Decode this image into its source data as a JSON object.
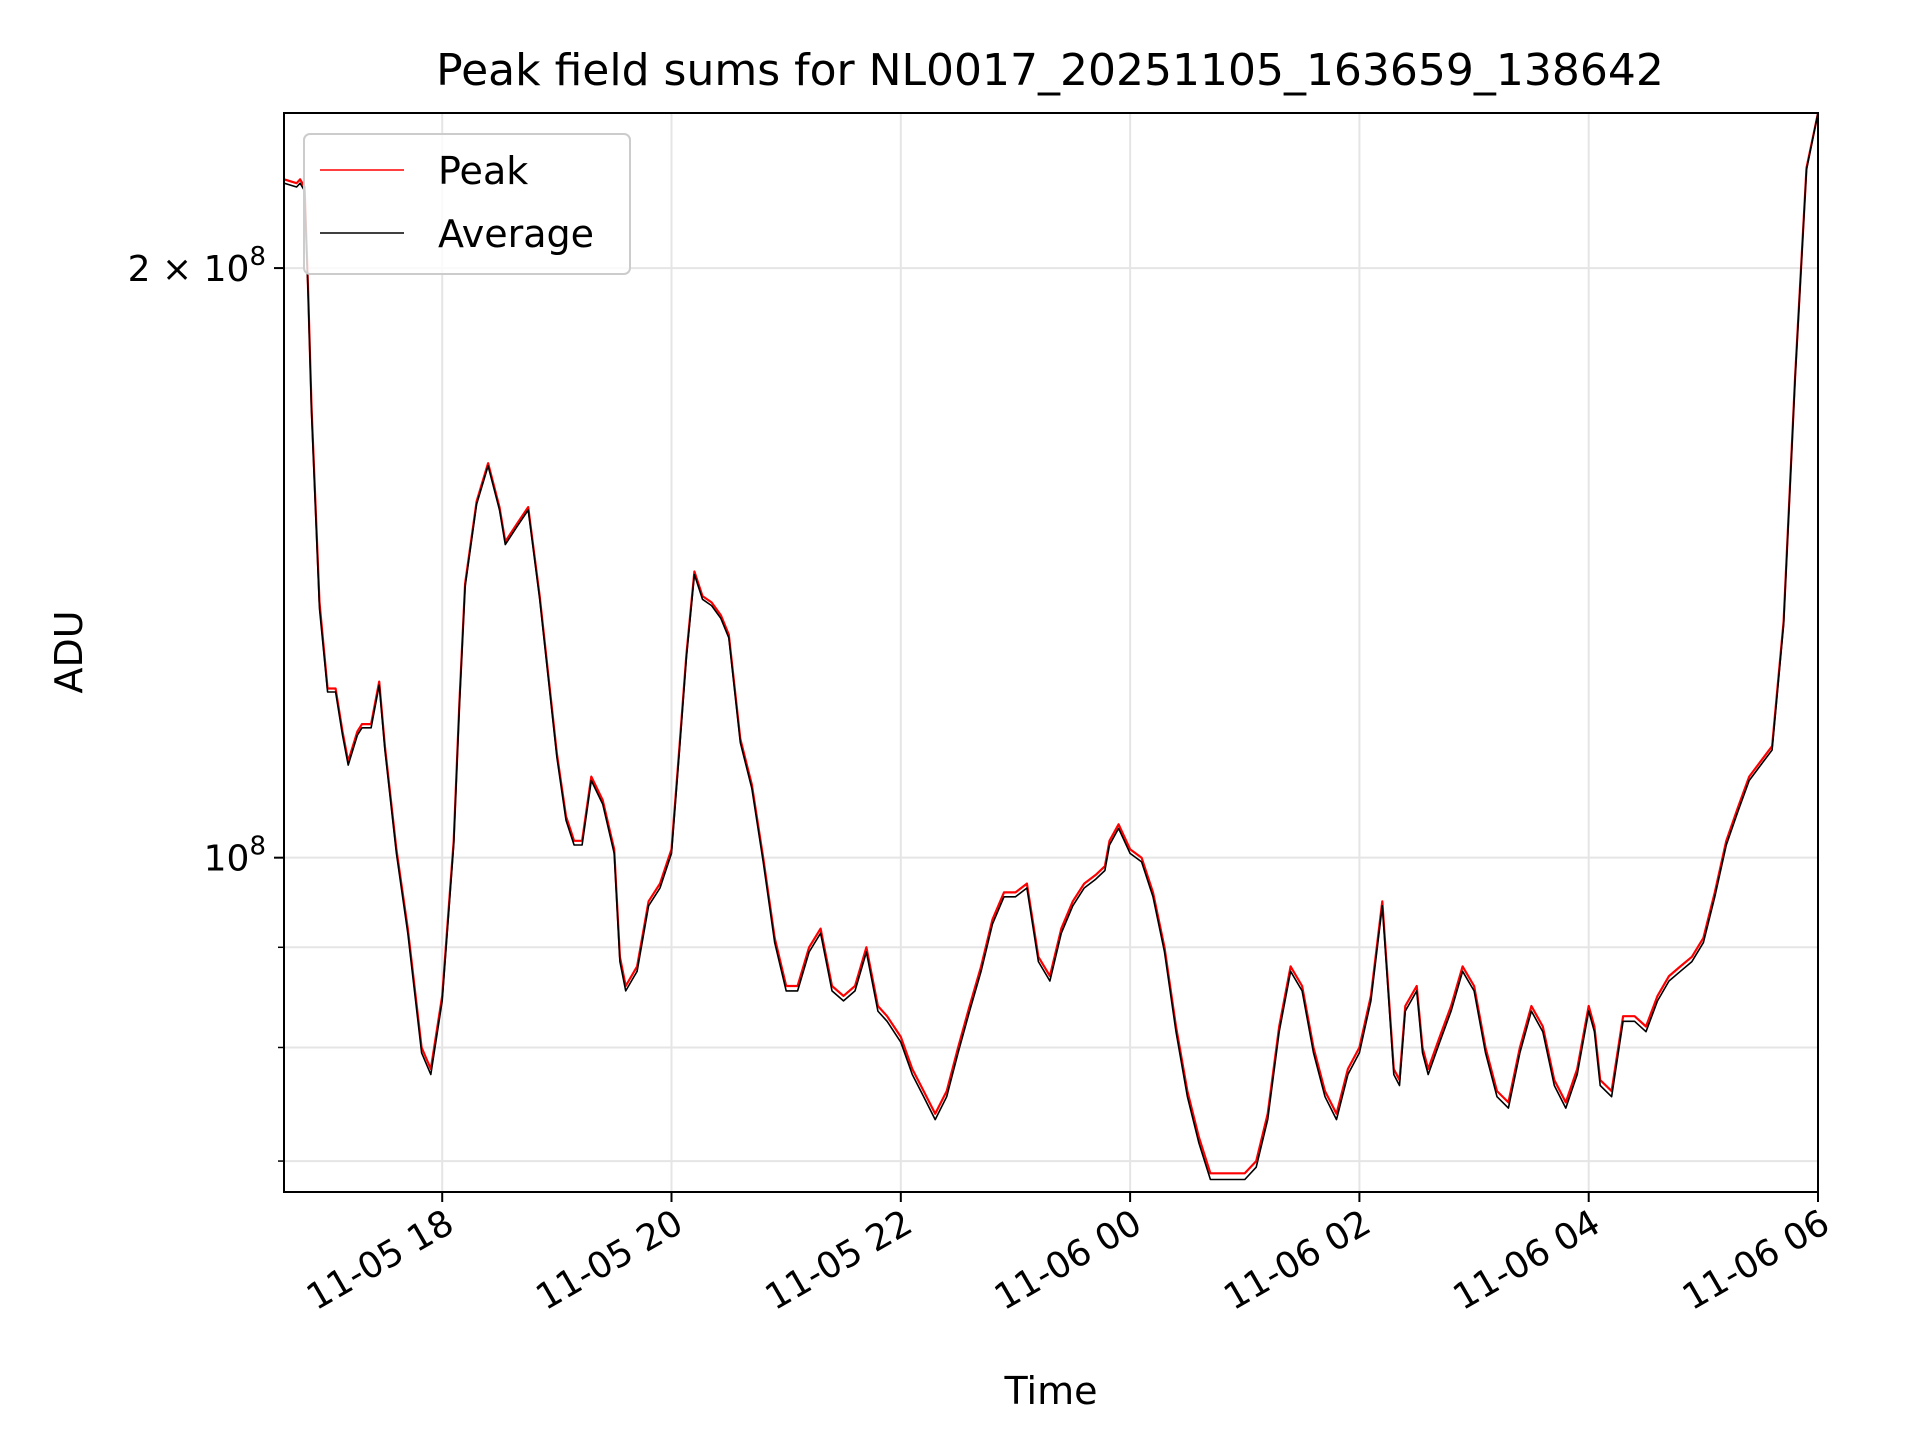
{
  "chart_data": {
    "type": "line",
    "title": "Peak field sums for NL0017_20251105_163659_138642",
    "xlabel": "Time",
    "ylabel": "ADU",
    "yscale": "log",
    "grid": true,
    "legend_position": "top-left",
    "x_range_hours": [
      16.62,
      30.0
    ],
    "y_range": [
      67500000,
      240000000
    ],
    "x_tick_labels": [
      {
        "hour": 18,
        "label": "11-05 18"
      },
      {
        "hour": 20,
        "label": "11-05 20"
      },
      {
        "hour": 22,
        "label": "11-05 22"
      },
      {
        "hour": 24,
        "label": "11-06 00"
      },
      {
        "hour": 26,
        "label": "11-06 02"
      },
      {
        "hour": 28,
        "label": "11-06 04"
      },
      {
        "hour": 30,
        "label": "11-06 06"
      }
    ],
    "y_major_ticks": [
      {
        "value": 100000000,
        "base": "10",
        "exp": "8",
        "coef": ""
      },
      {
        "value": 200000000,
        "base": "10",
        "exp": "8",
        "coef": "2 × "
      }
    ],
    "y_minor_ticks": [
      70000000,
      80000000,
      90000000
    ],
    "series": [
      {
        "name": "Peak",
        "color": "#ff0000",
        "x_hours": [
          16.62,
          16.73,
          16.76,
          16.8,
          16.83,
          16.86,
          16.93,
          17.0,
          17.07,
          17.13,
          17.18,
          17.26,
          17.3,
          17.38,
          17.45,
          17.5,
          17.6,
          17.7,
          17.82,
          17.9,
          18.0,
          18.1,
          18.15,
          18.2,
          18.3,
          18.4,
          18.5,
          18.55,
          18.65,
          18.75,
          18.85,
          19.0,
          19.08,
          19.15,
          19.18,
          19.22,
          19.3,
          19.4,
          19.5,
          19.55,
          19.6,
          19.7,
          19.8,
          19.9,
          20.0,
          20.07,
          20.13,
          20.2,
          20.27,
          20.35,
          20.43,
          20.5,
          20.6,
          20.7,
          20.8,
          20.9,
          21.0,
          21.1,
          21.2,
          21.3,
          21.4,
          21.5,
          21.6,
          21.7,
          21.8,
          21.88,
          22.0,
          22.1,
          22.2,
          22.3,
          22.4,
          22.5,
          22.6,
          22.7,
          22.8,
          22.9,
          23.0,
          23.1,
          23.2,
          23.3,
          23.4,
          23.5,
          23.6,
          23.7,
          23.78,
          23.82,
          23.9,
          24.0,
          24.1,
          24.2,
          24.3,
          24.4,
          24.5,
          24.6,
          24.7,
          24.8,
          24.9,
          25.0,
          25.1,
          25.2,
          25.3,
          25.4,
          25.5,
          25.6,
          25.7,
          25.8,
          25.9,
          26.0,
          26.1,
          26.2,
          26.3,
          26.35,
          26.4,
          26.5,
          26.55,
          26.6,
          26.7,
          26.8,
          26.9,
          27.0,
          27.1,
          27.2,
          27.3,
          27.4,
          27.5,
          27.6,
          27.7,
          27.8,
          27.9,
          28.0,
          28.05,
          28.1,
          28.2,
          28.3,
          28.4,
          28.5,
          28.6,
          28.7,
          28.8,
          28.9,
          29.0,
          29.1,
          29.2,
          29.3,
          29.4,
          29.5,
          29.6,
          29.7,
          29.8,
          29.9,
          30.0
        ],
        "values": [
          222000000.0,
          221000000.0,
          222000000.0,
          220000000.0,
          195000000.0,
          170000000.0,
          135000000.0,
          122000000.0,
          122000000.0,
          116000000.0,
          112000000.0,
          116000000.0,
          117000000.0,
          117000000.0,
          123000000.0,
          114000000.0,
          101000000.0,
          92000000.0,
          80000000.0,
          78000000.0,
          85000000.0,
          102000000.0,
          120000000.0,
          138000000.0,
          152000000.0,
          159000000.0,
          151000000.0,
          145000000.0,
          148000000.0,
          151000000.0,
          136000000.0,
          113000000.0,
          105000000.0,
          102000000.0,
          102000000.0,
          102000000.0,
          110000000.0,
          107000000.0,
          101000000.0,
          89000000.0,
          86000000.0,
          88000000.0,
          95000000.0,
          97000000.0,
          101000000.0,
          114000000.0,
          127000000.0,
          140000000.0,
          136000000.0,
          135000000.0,
          133000000.0,
          130000000.0,
          115000000.0,
          109000000.0,
          100000000.0,
          91000000.0,
          86000000.0,
          86000000.0,
          90000000.0,
          92000000.0,
          86000000.0,
          85000000.0,
          86000000.0,
          90000000.0,
          84000000.0,
          83000000.0,
          81000000.0,
          78000000.0,
          76000000.0,
          74000000.0,
          76000000.0,
          80000000.0,
          84000000.0,
          88000000.0,
          93000000.0,
          96000000.0,
          96000000.0,
          97000000.0,
          89000000.0,
          87000000.0,
          92000000.0,
          95000000.0,
          97000000.0,
          98000000.0,
          99000000.0,
          102000000.0,
          104000000.0,
          101000000.0,
          100000000.0,
          96000000.0,
          90000000.0,
          82000000.0,
          76000000.0,
          72000000.0,
          69000000.0,
          69000000.0,
          69000000.0,
          69000000.0,
          70000000.0,
          74000000.0,
          82000000.0,
          88000000.0,
          86000000.0,
          80000000.0,
          76000000.0,
          74000000.0,
          78000000.0,
          80000000.0,
          85000000.0,
          95000000.0,
          78000000.0,
          77000000.0,
          84000000.0,
          86000000.0,
          80000000.0,
          78000000.0,
          81000000.0,
          84000000.0,
          88000000.0,
          86000000.0,
          80000000.0,
          76000000.0,
          75000000.0,
          80000000.0,
          84000000.0,
          82000000.0,
          77000000.0,
          75000000.0,
          78000000.0,
          84000000.0,
          82000000.0,
          77000000.0,
          76000000.0,
          83000000.0,
          83000000.0,
          82000000.0,
          85000000.0,
          87000000.0,
          88000000.0,
          89000000.0,
          91000000.0,
          96000000.0,
          102000000.0,
          106000000.0,
          110000000.0,
          112000000.0,
          114000000.0,
          132000000.0,
          176000000.0,
          225000000.0,
          240000000.0
        ]
      },
      {
        "name": "Average",
        "color": "#000000",
        "x_hours": [
          16.62,
          16.73,
          16.76,
          16.8,
          16.83,
          16.86,
          16.93,
          17.0,
          17.07,
          17.13,
          17.18,
          17.26,
          17.3,
          17.38,
          17.45,
          17.5,
          17.6,
          17.7,
          17.82,
          17.9,
          18.0,
          18.1,
          18.15,
          18.2,
          18.3,
          18.4,
          18.5,
          18.55,
          18.65,
          18.75,
          18.85,
          19.0,
          19.08,
          19.15,
          19.18,
          19.22,
          19.3,
          19.4,
          19.5,
          19.55,
          19.6,
          19.7,
          19.8,
          19.9,
          20.0,
          20.07,
          20.13,
          20.2,
          20.27,
          20.35,
          20.43,
          20.5,
          20.6,
          20.7,
          20.8,
          20.9,
          21.0,
          21.1,
          21.2,
          21.3,
          21.4,
          21.5,
          21.6,
          21.7,
          21.8,
          21.88,
          22.0,
          22.1,
          22.2,
          22.3,
          22.4,
          22.5,
          22.6,
          22.7,
          22.8,
          22.9,
          23.0,
          23.1,
          23.2,
          23.3,
          23.4,
          23.5,
          23.6,
          23.7,
          23.78,
          23.82,
          23.9,
          24.0,
          24.1,
          24.2,
          24.3,
          24.4,
          24.5,
          24.6,
          24.7,
          24.8,
          24.9,
          25.0,
          25.1,
          25.2,
          25.3,
          25.4,
          25.5,
          25.6,
          25.7,
          25.8,
          25.9,
          26.0,
          26.1,
          26.2,
          26.3,
          26.35,
          26.4,
          26.5,
          26.55,
          26.6,
          26.7,
          26.8,
          26.9,
          27.0,
          27.1,
          27.2,
          27.3,
          27.4,
          27.5,
          27.6,
          27.7,
          27.8,
          27.9,
          28.0,
          28.05,
          28.1,
          28.2,
          28.3,
          28.4,
          28.5,
          28.6,
          28.7,
          28.8,
          28.9,
          29.0,
          29.1,
          29.2,
          29.3,
          29.4,
          29.5,
          29.6,
          29.7,
          29.8,
          29.9,
          30.0
        ],
        "values": [
          221000000.0,
          220000000.0,
          221000000.0,
          219000000.0,
          194000000.0,
          169000000.0,
          134000000.0,
          121500000.0,
          121500000.0,
          115500000.0,
          111500000.0,
          115500000.0,
          116500000.0,
          116500000.0,
          122500000.0,
          113500000.0,
          100500000.0,
          91500000.0,
          79500000.0,
          77500000.0,
          84500000.0,
          101500000.0,
          119500000.0,
          137500000.0,
          151500000.0,
          158500000.0,
          150500000.0,
          144500000.0,
          147500000.0,
          150500000.0,
          135500000.0,
          112500000.0,
          104500000.0,
          101500000.0,
          101500000.0,
          101500000.0,
          109500000.0,
          106500000.0,
          100500000.0,
          88500000.0,
          85500000.0,
          87500000.0,
          94500000.0,
          96500000.0,
          100500000.0,
          113500000.0,
          126500000.0,
          139500000.0,
          135500000.0,
          134500000.0,
          132500000.0,
          129500000.0,
          114500000.0,
          108500000.0,
          99500000.0,
          90500000.0,
          85500000.0,
          85500000.0,
          89500000.0,
          91500000.0,
          85500000.0,
          84500000.0,
          85500000.0,
          89500000.0,
          83500000.0,
          82500000.0,
          80500000.0,
          77500000.0,
          75500000.0,
          73500000.0,
          75500000.0,
          79500000.0,
          83500000.0,
          87500000.0,
          92500000.0,
          95500000.0,
          95500000.0,
          96500000.0,
          88500000.0,
          86500000.0,
          91500000.0,
          94500000.0,
          96500000.0,
          97500000.0,
          98500000.0,
          101500000.0,
          103500000.0,
          100500000.0,
          99500000.0,
          95500000.0,
          89500000.0,
          81500000.0,
          75500000.0,
          71500000.0,
          68500000.0,
          68500000.0,
          68500000.0,
          68500000.0,
          69500000.0,
          73500000.0,
          81500000.0,
          87500000.0,
          85500000.0,
          79500000.0,
          75500000.0,
          73500000.0,
          77500000.0,
          79500000.0,
          84500000.0,
          94500000.0,
          77500000.0,
          76500000.0,
          83500000.0,
          85500000.0,
          79500000.0,
          77500000.0,
          80500000.0,
          83500000.0,
          87500000.0,
          85500000.0,
          79500000.0,
          75500000.0,
          74500000.0,
          79500000.0,
          83500000.0,
          81500000.0,
          76500000.0,
          74500000.0,
          77500000.0,
          83500000.0,
          81500000.0,
          76500000.0,
          75500000.0,
          82500000.0,
          82500000.0,
          81500000.0,
          84500000.0,
          86500000.0,
          87500000.0,
          88500000.0,
          90500000.0,
          95500000.0,
          101500000.0,
          105500000.0,
          109500000.0,
          111500000.0,
          113500000.0,
          131500000.0,
          175500000.0,
          224500000.0,
          240000000.0
        ]
      }
    ]
  }
}
